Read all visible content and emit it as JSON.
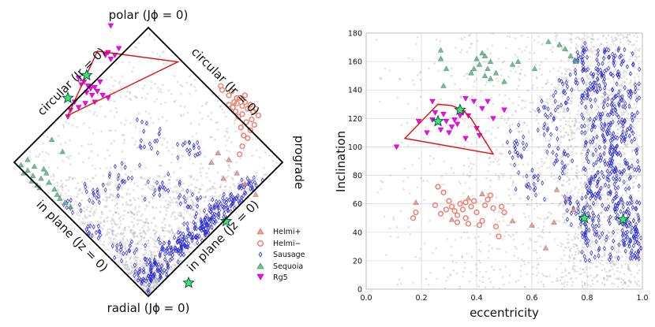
{
  "chart_data": [
    {
      "type": "scatter",
      "projection": "action-space diamond",
      "side_labels": {
        "top": "polar (Jϕ = 0)",
        "bottom": "radial (Jϕ = 0)",
        "right": "prograde",
        "upper_left": "circular (Jr = 0)",
        "upper_right": "circular (Jr = 0)",
        "lower_left": "in plane (Jz = 0)",
        "lower_right": "in plane (Jz = 0)"
      },
      "selection_polygon": [
        [
          -0.38,
          0.83
        ],
        [
          0.22,
          0.75
        ],
        [
          -0.6,
          0.35
        ]
      ],
      "series": [
        {
          "name": "Helmi+",
          "marker": "triangle-up",
          "color": "#f08070",
          "points": [
            [
              0.52,
              0.07
            ],
            [
              0.6,
              0.02
            ],
            [
              0.66,
              -0.08
            ],
            [
              0.72,
              -0.16
            ],
            [
              0.8,
              -0.24
            ],
            [
              0.56,
              -0.12
            ],
            [
              0.47,
              0.0
            ]
          ]
        },
        {
          "name": "Helmi−",
          "marker": "circle",
          "color": "#f08070",
          "points": [
            [
              0.54,
              0.57
            ],
            [
              0.55,
              0.54
            ],
            [
              0.6,
              0.5
            ],
            [
              0.62,
              0.53
            ],
            [
              0.64,
              0.45
            ],
            [
              0.66,
              0.44
            ],
            [
              0.68,
              0.48
            ],
            [
              0.7,
              0.42
            ],
            [
              0.72,
              0.45
            ],
            [
              0.74,
              0.4
            ],
            [
              0.76,
              0.43
            ],
            [
              0.78,
              0.38
            ],
            [
              0.8,
              0.4
            ],
            [
              0.7,
              0.36
            ],
            [
              0.73,
              0.3
            ],
            [
              0.67,
              0.34
            ],
            [
              0.65,
              0.38
            ],
            [
              0.69,
              0.26
            ],
            [
              0.71,
              0.2
            ],
            [
              0.76,
              0.24
            ],
            [
              0.79,
              0.28
            ],
            [
              0.82,
              0.35
            ],
            [
              0.74,
              0.18
            ],
            [
              0.7,
              0.12
            ],
            [
              0.66,
              0.48
            ],
            [
              0.63,
              0.41
            ],
            [
              0.72,
              0.5
            ],
            [
              0.6,
              0.43
            ],
            [
              0.77,
              0.32
            ],
            [
              0.68,
              0.06
            ]
          ]
        },
        {
          "name": "Sausage",
          "marker": "diamond",
          "color": "#2a2ad8",
          "density": 1.0,
          "points": [
            [
              0.1,
              -0.95
            ],
            [
              0.2,
              -0.9
            ],
            [
              0.3,
              -0.85
            ],
            [
              0.4,
              -0.8
            ],
            [
              0.55,
              -0.6
            ],
            [
              0.7,
              -0.4
            ],
            [
              0.8,
              -0.25
            ],
            [
              0.0,
              -0.75
            ],
            [
              -0.2,
              -0.65
            ],
            [
              -0.4,
              -0.55
            ],
            [
              -0.6,
              -0.35
            ],
            [
              0.2,
              -0.6
            ],
            [
              0.4,
              -0.5
            ],
            [
              0.3,
              -0.3
            ],
            [
              0.1,
              -0.2
            ],
            [
              -0.2,
              -0.1
            ],
            [
              0.0,
              0.2
            ],
            [
              -0.4,
              -0.25
            ],
            [
              0.3,
              0.1
            ],
            [
              0.55,
              -0.3
            ]
          ]
        },
        {
          "name": "Sequoia",
          "marker": "triangle-up",
          "color": "#3cb371",
          "points": [
            [
              -0.95,
              -0.02
            ],
            [
              -0.9,
              -0.06
            ],
            [
              -0.86,
              -0.1
            ],
            [
              -0.8,
              -0.12
            ],
            [
              -0.83,
              -0.17
            ],
            [
              -0.74,
              -0.15
            ],
            [
              -0.7,
              -0.2
            ],
            [
              -0.66,
              -0.27
            ],
            [
              -0.62,
              -0.3
            ],
            [
              -0.58,
              -0.33
            ],
            [
              -0.78,
              -0.05
            ],
            [
              -0.72,
              0.17
            ],
            [
              -0.9,
              0.02
            ],
            [
              -0.85,
              -0.03
            ],
            [
              -0.76,
              -0.08
            ],
            [
              -0.87,
              -0.14
            ],
            [
              -0.81,
              -0.19
            ],
            [
              -0.93,
              -0.08
            ],
            [
              -0.68,
              -0.24
            ],
            [
              -0.64,
              0.08
            ]
          ]
        },
        {
          "name": "Rg5",
          "marker": "triangle-down",
          "color": "#ff00ff",
          "points": [
            [
              -0.28,
              1.02
            ],
            [
              -0.52,
              0.63
            ],
            [
              -0.5,
              0.58
            ],
            [
              -0.48,
              0.6
            ],
            [
              -0.45,
              0.57
            ],
            [
              -0.43,
              0.55
            ],
            [
              -0.4,
              0.56
            ],
            [
              -0.38,
              0.53
            ],
            [
              -0.42,
              0.5
            ],
            [
              -0.46,
              0.52
            ],
            [
              -0.36,
              0.6
            ],
            [
              -0.32,
              0.8
            ],
            [
              -0.28,
              0.77
            ],
            [
              -0.3,
              0.82
            ],
            [
              -0.25,
              0.8
            ],
            [
              -0.22,
              0.85
            ],
            [
              -0.45,
              0.64
            ],
            [
              -0.55,
              0.45
            ],
            [
              -0.58,
              0.39
            ],
            [
              -0.52,
              0.41
            ],
            [
              -0.47,
              0.44
            ],
            [
              -0.6,
              0.34
            ],
            [
              -0.4,
              0.45
            ],
            [
              -0.34,
              0.5
            ],
            [
              -0.3,
              0.48
            ]
          ]
        }
      ],
      "special_points": [
        {
          "marker": "star",
          "color": "#33ee55",
          "coords": [
            0.3,
            -0.9
          ]
        },
        {
          "marker": "star",
          "color": "#33ee55",
          "coords": [
            0.58,
            -0.44
          ]
        },
        {
          "marker": "star",
          "color": "#33ee55",
          "coords": [
            -0.46,
            0.65
          ]
        },
        {
          "marker": "star",
          "color": "#33ee55",
          "coords": [
            -0.6,
            0.48
          ]
        }
      ],
      "legend": {
        "entries": [
          "Helmi+",
          "Helmi−",
          "Sausage",
          "Sequoia",
          "Rg5"
        ],
        "placement": "lower-right"
      }
    },
    {
      "type": "scatter",
      "xlabel": "eccentricity",
      "ylabel": "Inclination",
      "xlim": [
        0.0,
        1.0
      ],
      "ylim": [
        0,
        180
      ],
      "xticks": [
        "0.0",
        "0.2",
        "0.4",
        "0.6",
        "0.8",
        "1.0"
      ],
      "yticks": [
        "0",
        "20",
        "40",
        "60",
        "80",
        "100",
        "120",
        "140",
        "160",
        "180"
      ],
      "grid": true,
      "selection_polygon": [
        [
          0.14,
          106
        ],
        [
          0.26,
          130
        ],
        [
          0.31,
          129
        ],
        [
          0.35,
          126
        ],
        [
          0.38,
          120
        ],
        [
          0.46,
          95
        ]
      ],
      "series": [
        {
          "name": "Helmi+",
          "marker": "triangle-up",
          "color": "#f08070",
          "points": [
            [
              0.18,
              61
            ],
            [
              0.37,
              64
            ],
            [
              0.42,
              67
            ],
            [
              0.53,
              48
            ],
            [
              0.6,
              45
            ],
            [
              0.65,
              29
            ],
            [
              0.68,
              47
            ],
            [
              0.69,
              70
            ],
            [
              0.75,
              56
            ],
            [
              0.31,
              49
            ]
          ]
        },
        {
          "name": "Helmi−",
          "marker": "circle",
          "color": "#f08070",
          "points": [
            [
              0.17,
              50
            ],
            [
              0.18,
              54
            ],
            [
              0.26,
              72
            ],
            [
              0.28,
              68
            ],
            [
              0.3,
              62
            ],
            [
              0.31,
              58
            ],
            [
              0.32,
              55
            ],
            [
              0.33,
              52
            ],
            [
              0.34,
              60
            ],
            [
              0.35,
              56
            ],
            [
              0.36,
              50
            ],
            [
              0.37,
              46
            ],
            [
              0.38,
              58
            ],
            [
              0.39,
              62
            ],
            [
              0.4,
              54
            ],
            [
              0.42,
              48
            ],
            [
              0.43,
              59
            ],
            [
              0.44,
              63
            ],
            [
              0.45,
              66
            ],
            [
              0.46,
              57
            ],
            [
              0.47,
              44
            ],
            [
              0.48,
              37
            ],
            [
              0.49,
              58
            ],
            [
              0.5,
              54
            ],
            [
              0.29,
              56
            ],
            [
              0.27,
              53
            ],
            [
              0.33,
              47
            ],
            [
              0.41,
              45
            ],
            [
              0.36,
              61
            ],
            [
              0.25,
              59
            ]
          ]
        },
        {
          "name": "Sausage",
          "marker": "diamond",
          "color": "#2a2ad8",
          "points": [
            [
              0.78,
              160
            ],
            [
              0.8,
              140
            ],
            [
              0.85,
              120
            ],
            [
              0.88,
              100
            ],
            [
              0.9,
              80
            ],
            [
              0.92,
              60
            ],
            [
              0.94,
              50
            ],
            [
              0.96,
              40
            ],
            [
              0.75,
              60
            ],
            [
              0.82,
              70
            ],
            [
              0.7,
              90
            ],
            [
              0.65,
              120
            ],
            [
              0.72,
              140
            ],
            [
              0.86,
              150
            ],
            [
              0.9,
              130
            ],
            [
              0.95,
              110
            ],
            [
              0.6,
              75
            ],
            [
              0.55,
              100
            ],
            [
              0.97,
              30
            ],
            [
              0.8,
              45
            ]
          ]
        },
        {
          "name": "Sequoia",
          "marker": "triangle-up",
          "color": "#3cb371",
          "points": [
            [
              0.27,
              168
            ],
            [
              0.27,
              162
            ],
            [
              0.29,
              155
            ],
            [
              0.28,
              143
            ],
            [
              0.4,
              162
            ],
            [
              0.41,
              158
            ],
            [
              0.42,
              166
            ],
            [
              0.43,
              164
            ],
            [
              0.45,
              160
            ],
            [
              0.44,
              155
            ],
            [
              0.38,
              152
            ],
            [
              0.39,
              155
            ],
            [
              0.43,
              150
            ],
            [
              0.45,
              148
            ],
            [
              0.5,
              146
            ],
            [
              0.47,
              152
            ],
            [
              0.53,
              158
            ],
            [
              0.55,
              160
            ],
            [
              0.61,
              155
            ],
            [
              0.66,
              174
            ],
            [
              0.7,
              172
            ],
            [
              0.72,
              169
            ],
            [
              0.74,
              164
            ],
            [
              0.76,
              160
            ]
          ]
        },
        {
          "name": "Rg5",
          "marker": "triangle-down",
          "color": "#ff00ff",
          "points": [
            [
              0.11,
              100
            ],
            [
              0.19,
              118
            ],
            [
              0.22,
              110
            ],
            [
              0.24,
              119
            ],
            [
              0.25,
              124
            ],
            [
              0.27,
              112
            ],
            [
              0.28,
              123
            ],
            [
              0.29,
              118
            ],
            [
              0.3,
              110
            ],
            [
              0.31,
              114
            ],
            [
              0.32,
              119
            ],
            [
              0.33,
              116
            ],
            [
              0.34,
              122
            ],
            [
              0.35,
              124
            ],
            [
              0.36,
              134
            ],
            [
              0.37,
              122
            ],
            [
              0.39,
              132
            ],
            [
              0.4,
              113
            ],
            [
              0.41,
              108
            ],
            [
              0.42,
              127
            ],
            [
              0.44,
              132
            ],
            [
              0.46,
              120
            ],
            [
              0.5,
              126
            ],
            [
              0.24,
              132
            ],
            [
              0.36,
              106
            ]
          ]
        }
      ],
      "special_points": [
        {
          "marker": "star",
          "color": "#33ee55",
          "coords": [
            0.79,
            50
          ]
        },
        {
          "marker": "star",
          "color": "#33ee55",
          "coords": [
            0.93,
            49
          ]
        },
        {
          "marker": "star",
          "color": "#33ee55",
          "coords": [
            0.26,
            118
          ]
        },
        {
          "marker": "star",
          "color": "#33ee55",
          "coords": [
            0.34,
            126
          ]
        }
      ]
    }
  ]
}
